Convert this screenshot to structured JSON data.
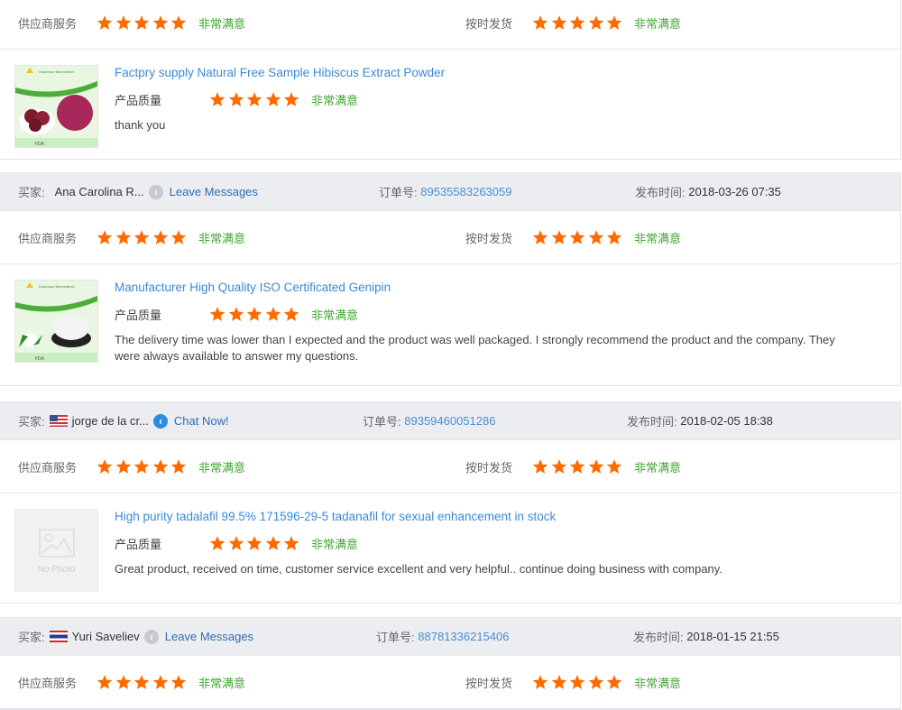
{
  "labels": {
    "buyer": "买家:",
    "order_no": "订单号:",
    "published": "发布时间:",
    "supplier_service": "供应商服务",
    "on_time_shipping": "按时发货",
    "product_quality": "产品质量",
    "very_satisfied": "非常满意",
    "no_photo": "No Photo"
  },
  "colors": {
    "star": "#ff6a00",
    "satisfied": "#3fa62f",
    "link": "#3a8ad6",
    "header_bg": "#ebedf0"
  },
  "reviews": [
    {
      "buyer": null,
      "supplier_service_stars": 5,
      "on_time_shipping_stars": 5,
      "product": {
        "title": "Factpry supply Natural Free Sample Hibiscus Extract Powder",
        "quality_stars": 5,
        "comment": "thank you",
        "image": "hibiscus-powder-photo"
      }
    },
    {
      "buyer": {
        "name": "Ana Carolina R...",
        "flag": null,
        "contact_label": "Leave Messages",
        "contact_icon": "offline-chat-icon",
        "order_number": "89535583263059",
        "published": "2018-03-26 07:35"
      },
      "supplier_service_stars": 5,
      "on_time_shipping_stars": 5,
      "product": {
        "title": "Manufacturer High Quality ISO Certificated Genipin",
        "quality_stars": 5,
        "comment": "The delivery time was lower than I expected and the product was well packaged. I strongly recommend the product and the company. They were always available to answer my questions.",
        "image": "genipin-powder-photo"
      }
    },
    {
      "buyer": {
        "name": "jorge de la cr...",
        "flag": "us",
        "contact_label": "Chat Now!",
        "contact_icon": "online-chat-icon",
        "order_number": "89359460051286",
        "published": "2018-02-05 18:38"
      },
      "supplier_service_stars": 5,
      "on_time_shipping_stars": 5,
      "product": {
        "title": "High purity tadalafil 99.5% 171596-29-5 tadanafil for sexual enhancement in stock",
        "quality_stars": 5,
        "comment": "Great product, received on time, customer service excellent and very helpful.. continue doing business with company.",
        "image": "no-photo"
      }
    },
    {
      "buyer": {
        "name": "Yuri Saveliev",
        "flag": "th",
        "contact_label": "Leave Messages",
        "contact_icon": "offline-chat-icon",
        "order_number": "88781336215406",
        "published": "2018-01-15 21:55"
      },
      "supplier_service_stars": 5,
      "on_time_shipping_stars": 5,
      "product": null
    }
  ]
}
